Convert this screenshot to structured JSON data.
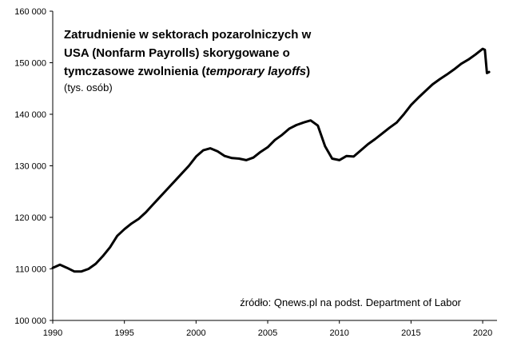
{
  "chart_data": {
    "type": "line",
    "title_lines": [
      {
        "parts": [
          {
            "text": "Zatrudnienie w sektorach pozarolniczych w",
            "italic": false
          }
        ]
      },
      {
        "parts": [
          {
            "text": "USA (Nonfarm Payrolls) skorygowane o",
            "italic": false
          }
        ]
      },
      {
        "parts": [
          {
            "text": "tymczasowe zwolnienia (",
            "italic": false
          },
          {
            "text": "temporary layoffs",
            "italic": true
          },
          {
            "text": ")",
            "italic": false
          }
        ]
      }
    ],
    "subtitle": "(tys. osób)",
    "source": "źródło: Qnews.pl na podst. Department of Labor",
    "xlim": [
      1990,
      2020.6
    ],
    "ylim": [
      100000,
      160000
    ],
    "x_ticks": [
      1990,
      1995,
      2000,
      2005,
      2010,
      2015,
      2020
    ],
    "y_ticks": [
      {
        "value": 100000,
        "label": "100 000"
      },
      {
        "value": 110000,
        "label": "110 000"
      },
      {
        "value": 120000,
        "label": "120 000"
      },
      {
        "value": 130000,
        "label": "130 000"
      },
      {
        "value": 140000,
        "label": "140 000"
      },
      {
        "value": 150000,
        "label": "150 000"
      },
      {
        "value": 160000,
        "label": "160 000"
      }
    ],
    "grid": false,
    "legend": false,
    "line_color": "#000000",
    "series": [
      {
        "x": [
          1990.0,
          1990.5,
          1991.0,
          1991.5,
          1992.0,
          1992.5,
          1993.0,
          1993.5,
          1994.0,
          1994.5,
          1995.0,
          1995.5,
          1996.0,
          1996.5,
          1997.0,
          1997.5,
          1998.0,
          1998.5,
          1999.0,
          1999.5,
          2000.0,
          2000.5,
          2001.0,
          2001.5,
          2002.0,
          2002.5,
          2003.0,
          2003.5,
          2004.0,
          2004.5,
          2005.0,
          2005.5,
          2006.0,
          2006.5,
          2007.0,
          2007.5,
          2008.0,
          2008.5,
          2009.0,
          2009.5,
          2010.0,
          2010.5,
          2011.0,
          2011.5,
          2012.0,
          2012.5,
          2013.0,
          2013.5,
          2014.0,
          2014.5,
          2015.0,
          2015.5,
          2016.0,
          2016.5,
          2017.0,
          2017.5,
          2018.0,
          2018.5,
          2019.0,
          2019.5,
          2020.0,
          2020.15,
          2020.3,
          2020.45
        ],
        "values": [
          110200,
          110800,
          110200,
          109500,
          109500,
          110000,
          111000,
          112500,
          114200,
          116400,
          117700,
          118800,
          119700,
          121000,
          122500,
          124000,
          125500,
          127000,
          128500,
          130000,
          131800,
          133000,
          133400,
          132800,
          131900,
          131500,
          131400,
          131100,
          131600,
          132700,
          133600,
          135000,
          136000,
          137200,
          137900,
          138400,
          138800,
          137800,
          133800,
          131400,
          131100,
          131900,
          131800,
          133000,
          134200,
          135200,
          136300,
          137400,
          138400,
          140000,
          141800,
          143200,
          144500,
          145800,
          146800,
          147700,
          148700,
          149800,
          150600,
          151600,
          152700,
          152500,
          148000,
          148200
        ]
      }
    ]
  }
}
